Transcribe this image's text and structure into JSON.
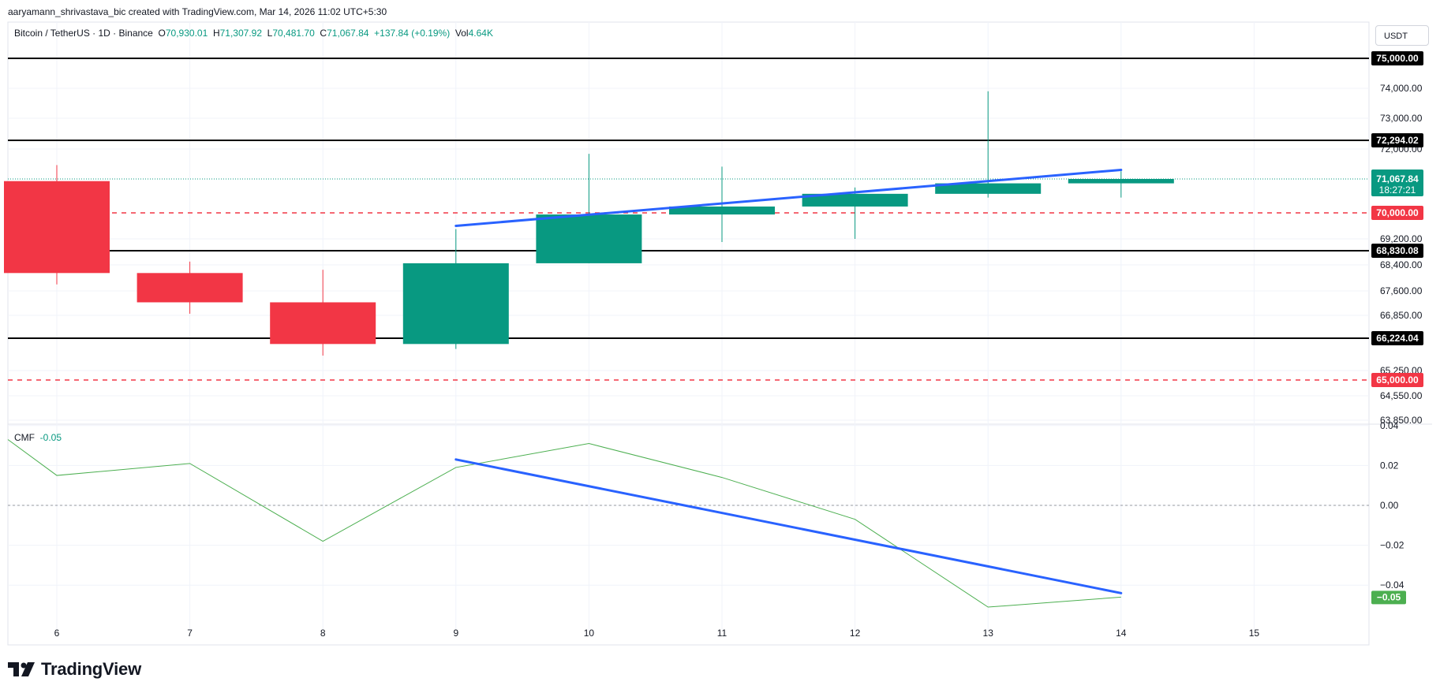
{
  "header": {
    "attribution": "aaryamann_shrivastava_bic created with TradingView.com, Mar 14, 2026 11:02 UTC+5:30"
  },
  "legend": {
    "symbol": "Bitcoin / TetherUS · 1D · Binance",
    "o_label": "O",
    "o": "70,930.01",
    "h_label": "H",
    "h": "71,307.92",
    "l_label": "L",
    "l": "70,481.70",
    "c_label": "C",
    "c": "71,067.84",
    "change": "+137.84 (+0.19%)",
    "vol_label": "Vol",
    "vol": "4.64K"
  },
  "currency_button": "USDT",
  "cmf_legend": {
    "name": "CMF",
    "value": "-0.05"
  },
  "branding": {
    "logo_text": "TradingView"
  },
  "colors": {
    "up": "#089981",
    "down": "#f23645",
    "trendline": "#2962ff",
    "cmf_line": "#4caf50",
    "black_level": "#000000",
    "red_level": "#f23645",
    "grid": "#f0f3fa"
  },
  "chart_data": [
    {
      "type": "candlestick",
      "title": "Bitcoin / TetherUS · 1D · Binance",
      "categories": [
        "6",
        "7",
        "8",
        "9",
        "10",
        "11",
        "12",
        "13",
        "14",
        "15"
      ],
      "candles": [
        {
          "day": "6",
          "open": 71000,
          "high": 71500,
          "low": 67800,
          "close": 68150
        },
        {
          "day": "7",
          "open": 68150,
          "high": 68500,
          "low": 66900,
          "close": 67250
        },
        {
          "day": "8",
          "open": 67250,
          "high": 68250,
          "low": 65700,
          "close": 66050
        },
        {
          "day": "9",
          "open": 66050,
          "high": 69500,
          "low": 65900,
          "close": 68450
        },
        {
          "day": "10",
          "open": 68450,
          "high": 71850,
          "low": 68450,
          "close": 69950
        },
        {
          "day": "11",
          "open": 69950,
          "high": 71450,
          "low": 69100,
          "close": 70200
        },
        {
          "day": "12",
          "open": 70200,
          "high": 70800,
          "low": 69200,
          "close": 70600
        },
        {
          "day": "13",
          "open": 70600,
          "high": 73900,
          "low": 70480,
          "close": 70930
        },
        {
          "day": "14",
          "open": 70930,
          "high": 71307.92,
          "low": 70481.7,
          "close": 71067.84
        }
      ],
      "y_ticks": [
        "63,850.00",
        "64,550.00",
        "65,250.00",
        "66,850.00",
        "67,600.00",
        "68,400.00",
        "69,200.00",
        "72,000.00",
        "73,000.00",
        "74,000.00"
      ],
      "y_ticks_values": [
        63850,
        64550,
        65250,
        66850,
        67600,
        68400,
        69200,
        72000,
        73000,
        74000
      ],
      "levels": [
        {
          "value": 75000,
          "label": "75,000.00",
          "style": "solid",
          "color": "#000000"
        },
        {
          "value": 72294.02,
          "label": "72,294.02",
          "style": "solid",
          "color": "#000000"
        },
        {
          "value": 70000,
          "label": "70,000.00",
          "style": "dashed",
          "color": "#f23645"
        },
        {
          "value": 68830.08,
          "label": "68,830.08",
          "style": "solid",
          "color": "#000000"
        },
        {
          "value": 66224.04,
          "label": "66,224.04",
          "style": "solid",
          "color": "#000000"
        },
        {
          "value": 65000,
          "label": "65,000.00",
          "style": "dashed",
          "color": "#f23645"
        }
      ],
      "last_price": {
        "value": 71067.84,
        "label": "71,067.84",
        "countdown": "18:27:21"
      },
      "trendline": {
        "from": {
          "day": "9",
          "value": 69600
        },
        "to": {
          "day": "14",
          "value": 71350
        }
      },
      "grid": true
    },
    {
      "type": "line",
      "title": "CMF",
      "categories": [
        "5.6",
        "6",
        "7",
        "8",
        "9",
        "10",
        "11",
        "12",
        "13",
        "14"
      ],
      "values": [
        0.033,
        0.015,
        0.021,
        -0.018,
        0.019,
        0.031,
        0.014,
        -0.007,
        -0.051,
        -0.046
      ],
      "y_ticks": [
        "0.04",
        "0.02",
        "0.00",
        "−0.02",
        "−0.04"
      ],
      "y_ticks_values": [
        0.04,
        0.02,
        0.0,
        -0.02,
        -0.04
      ],
      "zero_line": true,
      "last_value_label": "−0.05",
      "trendline": {
        "from": {
          "day": "9",
          "value": 0.023
        },
        "to": {
          "day": "14",
          "value": -0.044
        }
      }
    }
  ]
}
